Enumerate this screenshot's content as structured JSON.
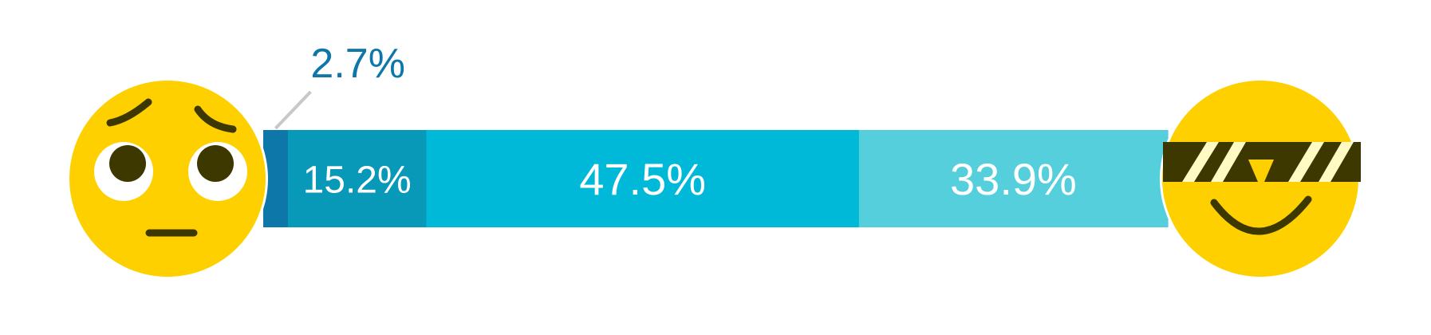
{
  "chart_data": {
    "type": "bar",
    "orientation": "horizontal-stacked-100",
    "title": "",
    "categories": [
      "2.7%",
      "15.2%",
      "47.5%",
      "33.9%"
    ],
    "values": [
      2.7,
      15.2,
      47.5,
      33.9
    ],
    "labels": [
      "2.7%",
      "15.2%",
      "47.5%",
      "33.9%"
    ],
    "colors": [
      "#0c77a8",
      "#0899b9",
      "#00b8d8",
      "#55cfdc"
    ],
    "label_colors": [
      "#0c77a8",
      "#ffffff",
      "#ffffff",
      "#ffffff"
    ],
    "xlim": [
      0,
      100
    ],
    "grid": false,
    "legend": "none"
  },
  "icons": {
    "left": "pleading-face-icon",
    "right": "sunglasses-face-icon"
  },
  "colors": {
    "emoji_face": "#ffd000",
    "emoji_feature": "#3d3800",
    "leader_line": "#c8c8c8"
  }
}
